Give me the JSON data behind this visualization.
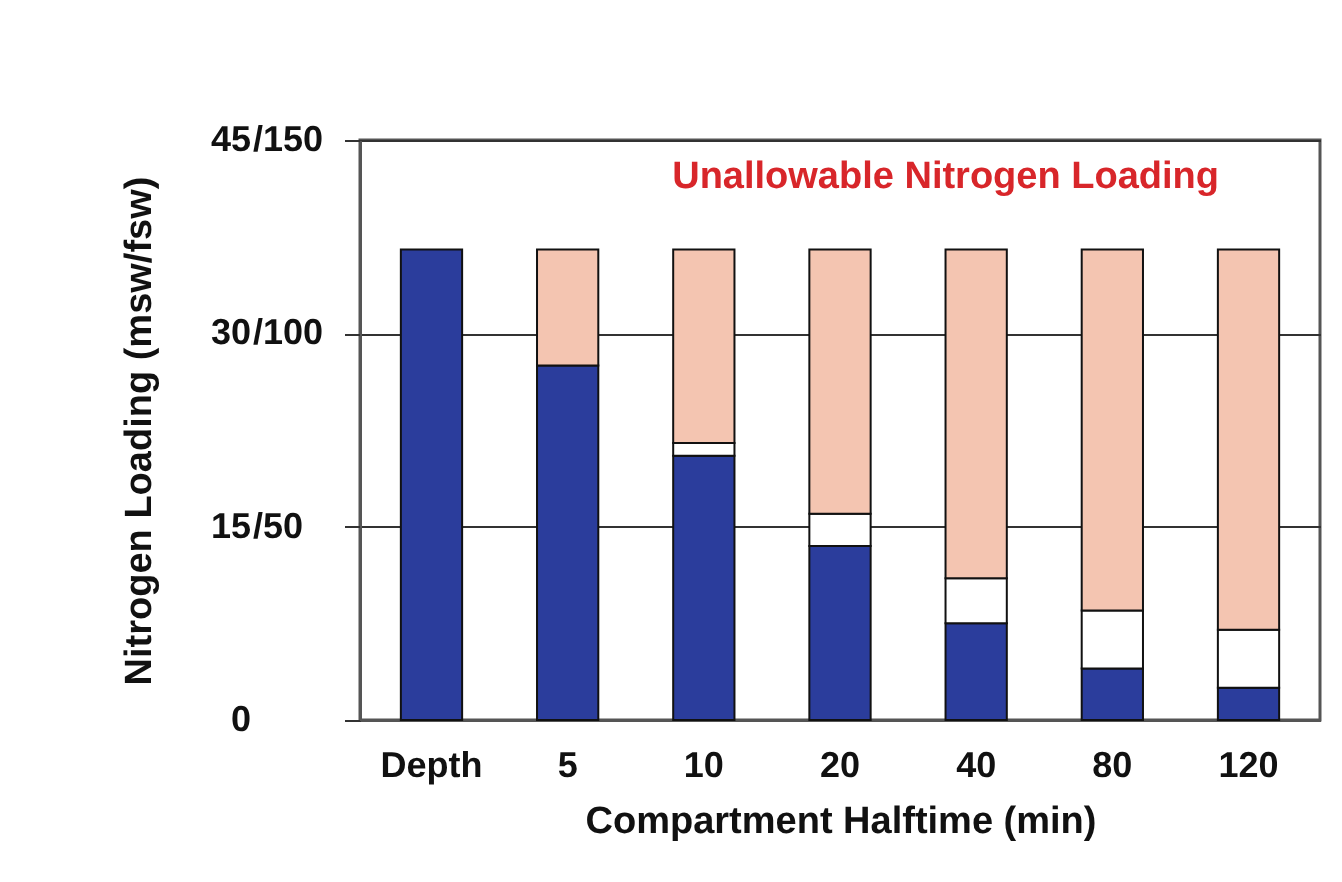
{
  "chart_data": {
    "type": "bar",
    "stacked": true,
    "xlabel": "Compartment Halftime (min)",
    "ylabel": "Nitrogen Loading (msw/fsw)",
    "annotations": [
      "Unallowable Nitrogen Loading"
    ],
    "categories": [
      "Depth",
      "5",
      "10",
      "20",
      "40",
      "80",
      "120"
    ],
    "series": [
      {
        "color": "#2b3d9c",
        "values": [
          36.5,
          27.5,
          20.5,
          13.5,
          7.5,
          4,
          2.5
        ]
      },
      {
        "color": "#ffffff",
        "values": [
          null,
          null,
          1,
          2.5,
          3.5,
          4.5,
          4.5
        ]
      },
      {
        "color": "#f4c5b1",
        "values": [
          null,
          9,
          15,
          20.5,
          25.5,
          28,
          29.5
        ]
      }
    ],
    "ylim": [
      0,
      45
    ],
    "yticks": [
      0,
      15,
      30,
      45
    ],
    "y2lim": [
      0,
      150
    ],
    "y2ticks": [
      {
        "value": 0,
        "label": null
      },
      {
        "value": 50,
        "label": "/50"
      },
      {
        "value": 100,
        "label": "/100"
      },
      {
        "value": 150,
        "label": "/150"
      }
    ],
    "grid": "y"
  }
}
